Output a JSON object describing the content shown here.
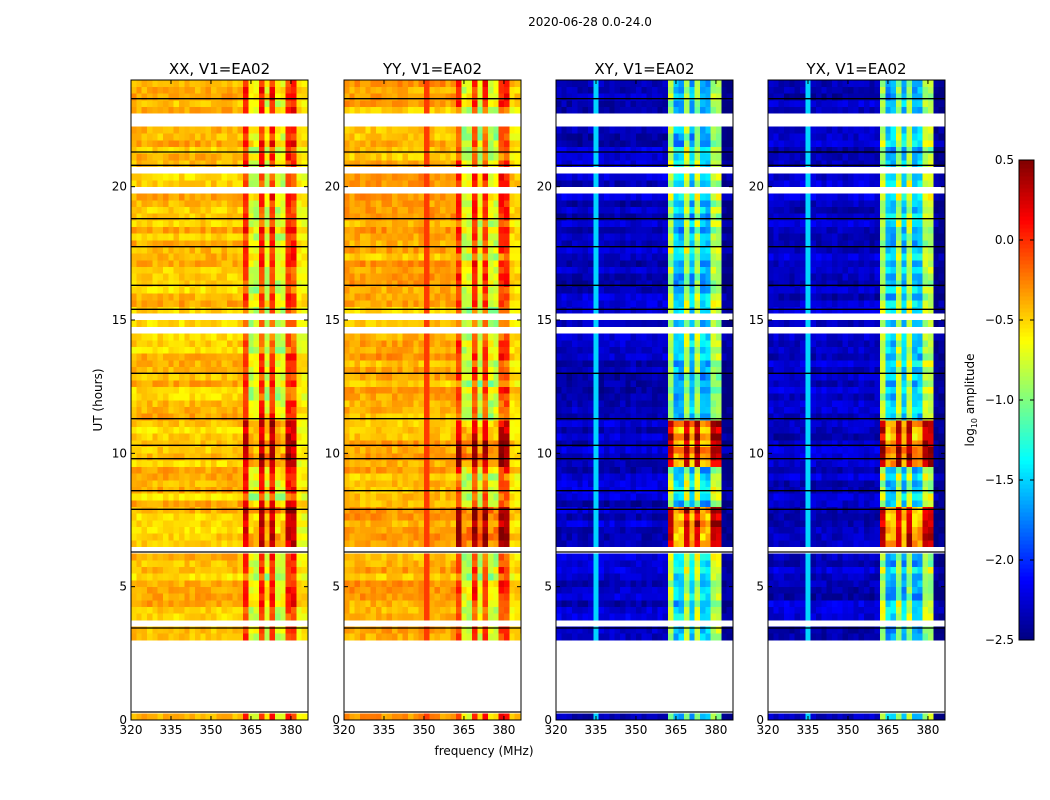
{
  "chart_data": {
    "type": "heatmap",
    "title": "2020-06-28 0.0-24.0",
    "xlabel": "frequency (MHz)",
    "ylabel": "UT (hours)",
    "colorbar": {
      "label_main": "log",
      "label_sub": "10",
      "label_rest": " amplitude",
      "range": [
        -2.5,
        0.5
      ],
      "ticks": [
        0.5,
        0.0,
        -0.5,
        -1.0,
        -1.5,
        -2.0,
        -2.5
      ],
      "tick_labels": [
        "0.5",
        "0.0",
        "−0.5",
        "−1.0",
        "−1.5",
        "−2.0",
        "−2.5"
      ],
      "colormap": "jet"
    },
    "xlim": [
      320,
      386.4
    ],
    "ylim": [
      0,
      24
    ],
    "xticks": [
      320,
      335,
      350,
      365,
      380
    ],
    "xtick_labels": [
      "320",
      "335",
      "350",
      "365",
      "380"
    ],
    "yticks": [
      0,
      5,
      10,
      15,
      20
    ],
    "ytick_labels": [
      "0",
      "5",
      "10",
      "15",
      "20"
    ],
    "time_step_hours": 0.25,
    "freq_step_mhz": 2,
    "flagged_hours": [
      [
        0.3,
        3.1
      ],
      [
        3.5,
        3.7
      ],
      [
        6.2,
        6.4
      ],
      [
        14.55,
        14.85
      ],
      [
        15.05,
        15.3
      ],
      [
        17.9,
        18.05
      ],
      [
        19.85,
        20.05
      ],
      [
        20.45,
        20.75
      ],
      [
        22.35,
        22.75
      ]
    ],
    "gap_lines_hours": [
      0.3,
      3.45,
      6.3,
      7.9,
      8.6,
      9.8,
      10.3,
      11.3,
      13.0,
      15.4,
      16.3,
      17.75,
      18.8,
      20.8,
      21.3,
      23.3
    ],
    "high_band_mhz": [
      362,
      382
    ],
    "band_dips_mhz": [
      366,
      371,
      376
    ],
    "active_hours": [
      [
        6.4,
        8.0
      ],
      [
        9.4,
        11.2
      ]
    ],
    "panels": [
      {
        "title": "XX, V1=EA02",
        "low_band_level": -0.45,
        "high_band_level": -0.05,
        "active_level": 0.35,
        "line_mhz": null,
        "line_level": null
      },
      {
        "title": "YY, V1=EA02",
        "low_band_level": -0.4,
        "high_band_level": -0.1,
        "active_level": 0.35,
        "line_mhz": 351,
        "line_level": -0.05
      },
      {
        "title": "XY, V1=EA02",
        "low_band_level": -2.3,
        "high_band_level": -0.85,
        "active_level": 0.3,
        "line_mhz": 335,
        "line_level": -1.5
      },
      {
        "title": "YX, V1=EA02",
        "low_band_level": -2.3,
        "high_band_level": -0.85,
        "active_level": 0.3,
        "line_mhz": 335,
        "line_level": -1.5
      }
    ]
  }
}
